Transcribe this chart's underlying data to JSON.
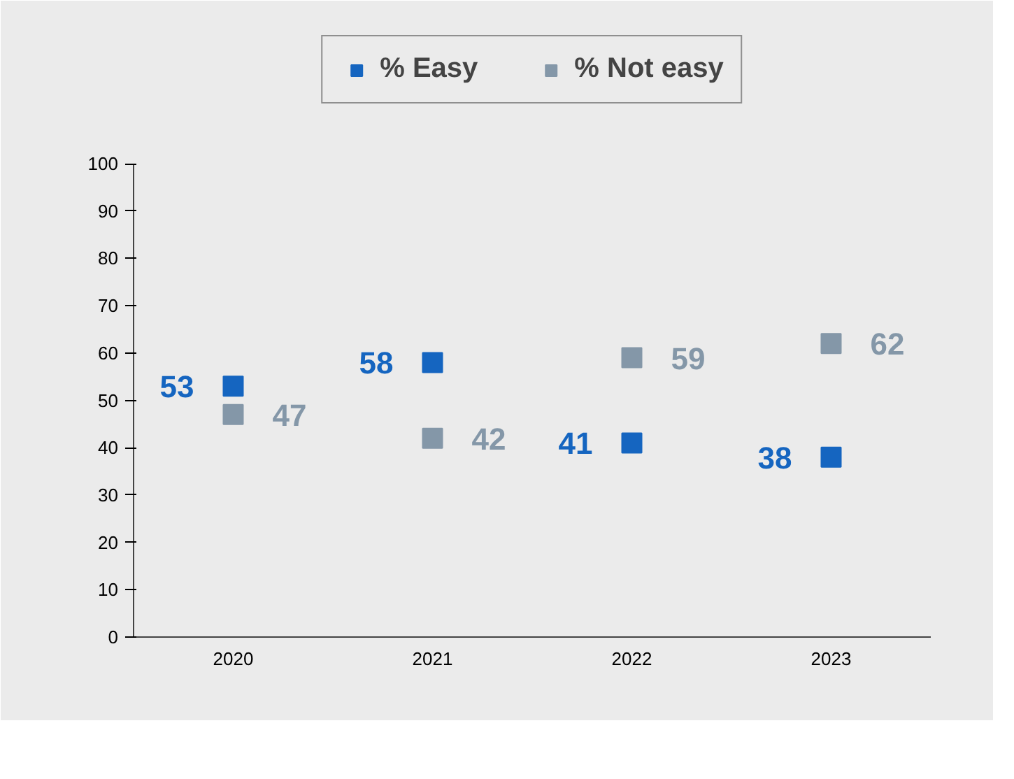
{
  "chart_data": {
    "type": "scatter",
    "categories": [
      "2020",
      "2021",
      "2022",
      "2023"
    ],
    "series": [
      {
        "name": "% Easy",
        "color": "#1565c0",
        "values": [
          53,
          58,
          41,
          38
        ]
      },
      {
        "name": "% Not easy",
        "color": "#8497a8",
        "values": [
          47,
          42,
          59,
          62
        ]
      }
    ],
    "ylim": [
      0,
      100
    ],
    "yticks": [
      0,
      10,
      20,
      30,
      40,
      50,
      60,
      70,
      80,
      90,
      100
    ],
    "data_labels": true,
    "legend": "top",
    "grid": false,
    "marker": "square"
  }
}
